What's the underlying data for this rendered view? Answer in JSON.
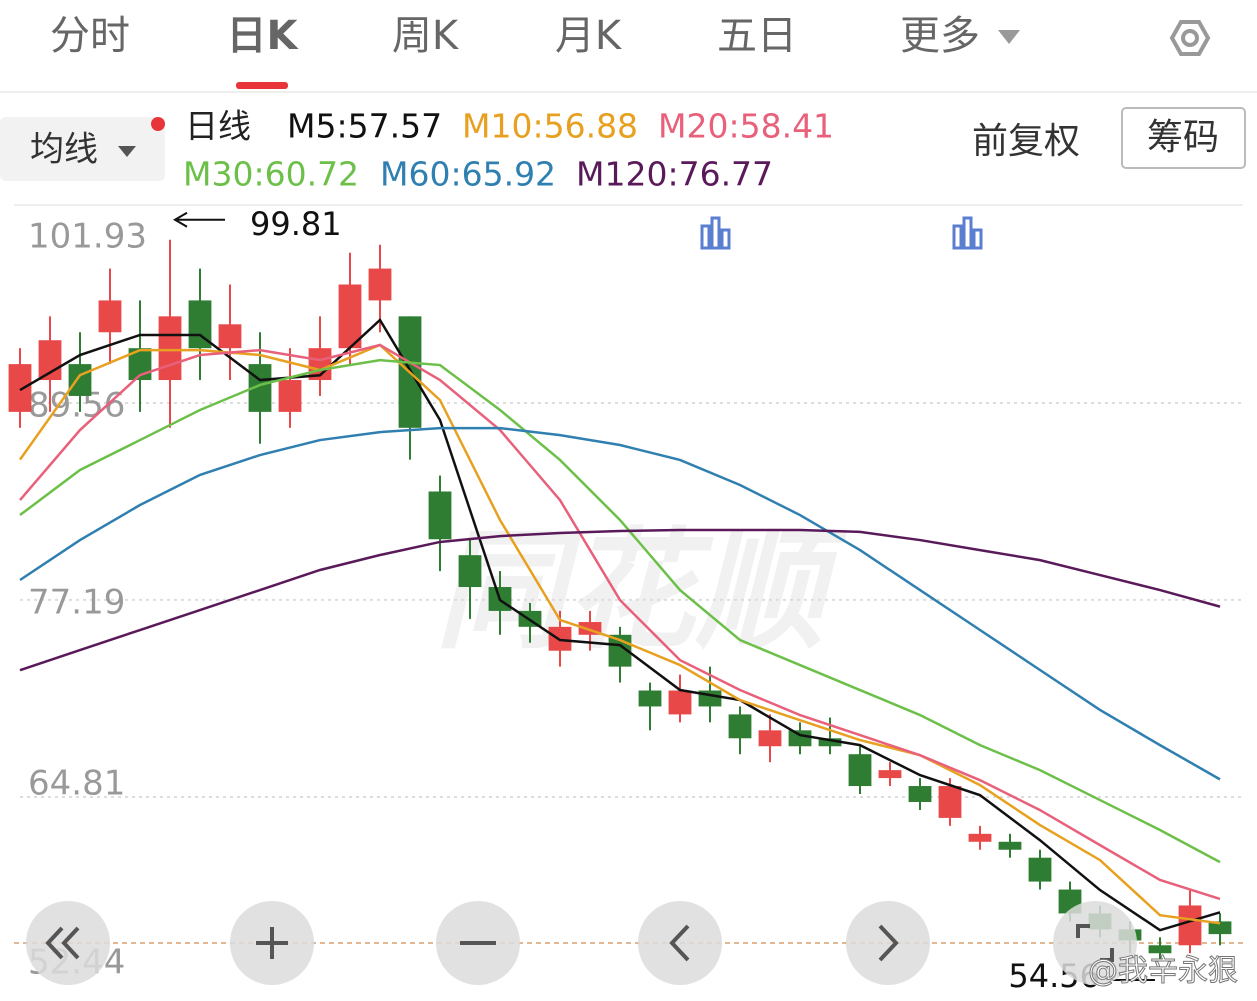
{
  "tabs": [
    "分时",
    "日K",
    "周K",
    "月K",
    "五日",
    "更多"
  ],
  "active_tab": 1,
  "ma_button": "均线",
  "period_label": "日线",
  "adjust_label": "前复权",
  "chips_button": "筹码",
  "watermark": "同花顺",
  "credit": "@我辛永狠",
  "chart_data": {
    "type": "candlestick",
    "open": [
      89,
      91,
      92,
      94,
      93,
      91,
      96,
      93,
      92,
      89,
      91,
      93,
      96,
      95,
      84,
      80,
      78,
      76.5,
      74,
      75,
      75,
      71.5,
      70,
      71.5,
      70,
      68,
      69,
      68.5,
      67.5,
      66,
      65.5,
      63.5,
      62,
      62,
      61,
      59,
      57.5,
      56.5,
      55.5,
      55.5,
      57
    ],
    "high": [
      93,
      95,
      94,
      98,
      96,
      99.81,
      98,
      97,
      94,
      93,
      95,
      99,
      99.5,
      95,
      85,
      81,
      79,
      77,
      76.5,
      76.5,
      75.5,
      72,
      72.5,
      73,
      70.5,
      70,
      69.5,
      69.8,
      68,
      67,
      66,
      66,
      63,
      62.5,
      61.5,
      59.5,
      58,
      57,
      56,
      59,
      57.5
    ],
    "low": [
      88,
      89,
      89,
      92,
      89,
      88,
      91,
      91,
      87,
      88,
      90,
      92,
      94,
      86,
      79,
      76,
      75,
      74.5,
      73,
      74,
      72,
      69,
      69.5,
      69.5,
      67.5,
      67,
      67.5,
      67.5,
      65,
      65.5,
      64,
      63,
      61.5,
      61,
      59,
      57,
      56,
      55,
      54.56,
      55,
      55.5
    ],
    "close": [
      92,
      93.5,
      90,
      96,
      91,
      95,
      93,
      94.5,
      89,
      91,
      93,
      97,
      98,
      88,
      81,
      78,
      76.5,
      75.5,
      75.5,
      75.8,
      73,
      70.5,
      71.5,
      70.5,
      68.5,
      69,
      68,
      68,
      65.5,
      66.5,
      64.5,
      65.5,
      62.5,
      61.5,
      59.5,
      57.5,
      56.5,
      55.8,
      55,
      58,
      56.2
    ],
    "up_color": "#e84848",
    "down_color": "#2e7d32",
    "xlim": [
      -0.5,
      40.5
    ],
    "ylim": [
      52.44,
      101.93
    ],
    "yticks": [
      101.93,
      89.56,
      77.19,
      64.81,
      52.44
    ],
    "grid": true,
    "last_price": 55.64,
    "annotations": [
      {
        "value": 99.81,
        "index": 5
      },
      {
        "value": 54.56,
        "index": 38
      }
    ],
    "ma": {
      "x": [
        0,
        2,
        4,
        6,
        8,
        10,
        12,
        14,
        16,
        18,
        20,
        22,
        24,
        26,
        28,
        30,
        32,
        34,
        36,
        38,
        40
      ],
      "series": [
        {
          "name": "M5:57.57",
          "color": "#111111",
          "values": [
            90.37,
            92.57,
            93.83,
            93.83,
            91.0,
            91.3,
            94.77,
            88.49,
            77.18,
            74.67,
            74.35,
            71.53,
            70.9,
            68.7,
            68.07,
            66.19,
            64.93,
            62.1,
            58.97,
            56.45,
            57.57
          ]
        },
        {
          "name": "M10:56.88",
          "color": "#e8a020",
          "values": [
            86.0,
            91.31,
            92.88,
            92.88,
            92.57,
            91.63,
            93.2,
            89.74,
            82.21,
            75.93,
            74.67,
            73.1,
            70.9,
            69.64,
            68.39,
            67.44,
            65.56,
            63.05,
            60.85,
            57.39,
            56.88
          ]
        },
        {
          "name": "M20:58.41",
          "color": "#e8607a",
          "values": [
            83.46,
            87.86,
            91.31,
            92.57,
            92.88,
            92.25,
            93.2,
            91.0,
            87.86,
            83.46,
            77.18,
            73.41,
            71.53,
            69.96,
            68.7,
            67.44,
            65.87,
            63.99,
            61.79,
            59.6,
            58.41
          ]
        },
        {
          "name": "M30:60.72",
          "color": "#6cc04a",
          "values": [
            82.52,
            85.35,
            87.23,
            89.12,
            90.69,
            91.63,
            92.25,
            91.94,
            89.12,
            85.98,
            82.21,
            77.81,
            74.67,
            73.1,
            71.53,
            69.96,
            68.07,
            66.5,
            64.62,
            62.74,
            60.72
          ]
        },
        {
          "name": "M60:65.92",
          "color": "#2f7fb0",
          "values": [
            78.44,
            80.95,
            83.15,
            85.04,
            86.29,
            87.23,
            87.73,
            87.98,
            87.98,
            87.54,
            86.92,
            85.98,
            84.41,
            82.52,
            80.32,
            77.81,
            75.3,
            72.79,
            70.28,
            68.07,
            65.92
          ]
        },
        {
          "name": "M120:76.77",
          "color": "#5a1a5a",
          "values": [
            72.78,
            74.04,
            75.3,
            76.55,
            77.81,
            79.07,
            80.01,
            80.83,
            81.2,
            81.39,
            81.52,
            81.58,
            81.58,
            81.58,
            81.46,
            80.95,
            80.32,
            79.69,
            78.75,
            77.81,
            76.77
          ]
        }
      ]
    }
  }
}
